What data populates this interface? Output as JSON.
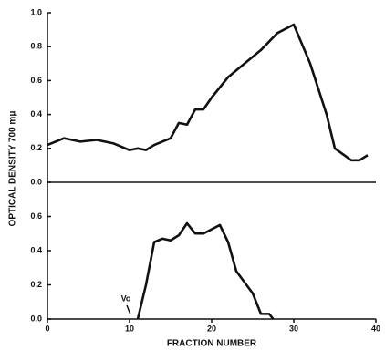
{
  "chart_data": [
    {
      "type": "line",
      "ylabel": "OPTICAL DENSITY 700 mμ",
      "x": [
        0,
        2,
        4,
        6,
        8,
        10,
        11,
        12,
        13,
        15,
        16,
        17,
        18,
        19,
        20,
        22,
        24,
        26,
        28,
        30,
        32,
        34,
        35,
        37,
        38,
        39
      ],
      "series": [
        {
          "color": "#111111",
          "values": [
            0.22,
            0.26,
            0.24,
            0.25,
            0.23,
            0.19,
            0.2,
            0.19,
            0.22,
            0.26,
            0.35,
            0.34,
            0.43,
            0.43,
            0.5,
            0.62,
            0.7,
            0.78,
            0.88,
            0.93,
            0.7,
            0.4,
            0.2,
            0.13,
            0.13,
            0.16
          ]
        }
      ],
      "xlim": [
        0,
        40
      ],
      "ylim": [
        0,
        1.0
      ],
      "yticks": [
        {
          "value": 0,
          "label": "0.0"
        },
        0.2,
        0.4,
        0.6,
        0.8,
        {
          "value": 1,
          "label": "1.0"
        }
      ]
    },
    {
      "type": "line",
      "xlabel": "FRACTION NUMBER",
      "annotation": "Vo",
      "x": [
        11,
        12,
        13,
        14,
        15,
        16,
        17,
        18,
        19,
        21,
        22,
        23,
        25,
        26,
        27,
        27.5
      ],
      "series": [
        {
          "color": "#111111",
          "values": [
            0,
            0.2,
            0.45,
            0.47,
            0.46,
            0.49,
            0.56,
            0.5,
            0.5,
            0.55,
            0.45,
            0.28,
            0.15,
            0.03,
            0.03,
            0
          ]
        }
      ],
      "xlim": [
        0,
        40
      ],
      "ylim": [
        0,
        0.8
      ],
      "xticks": [
        0,
        10,
        20,
        30,
        40
      ],
      "yticks": [
        {
          "value": 0,
          "label": "0.0"
        },
        0.2,
        0.4,
        0.6
      ]
    }
  ]
}
